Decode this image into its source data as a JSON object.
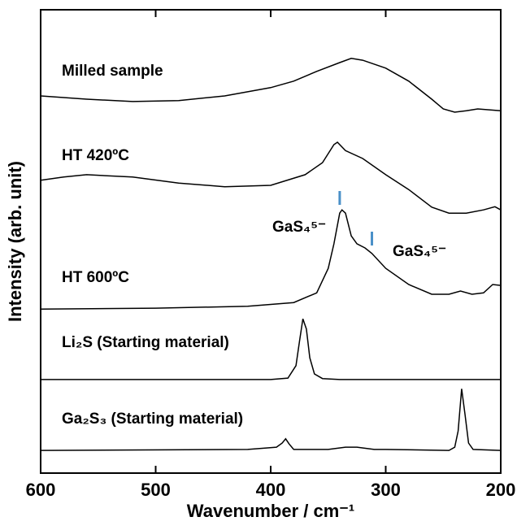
{
  "chart_data": {
    "type": "line",
    "xlabel": "Wavenumber / cm⁻¹",
    "ylabel": "Intensity (arb. unit)",
    "xlim": [
      600,
      200
    ],
    "xticks": [
      600,
      500,
      400,
      300,
      200
    ],
    "ylim": [
      0,
      100
    ],
    "series": [
      {
        "name": "Milled sample",
        "color": "#000000",
        "x": [
          600,
          560,
          520,
          480,
          440,
          400,
          380,
          360,
          340,
          330,
          320,
          300,
          280,
          260,
          250,
          240,
          230,
          220,
          200
        ],
        "values": [
          81.4,
          80.7,
          80.2,
          80.4,
          81.4,
          83.2,
          84.6,
          86.7,
          88.6,
          89.5,
          89.1,
          87.4,
          84.6,
          80.7,
          78.6,
          77.9,
          78.2,
          78.6,
          78.2
        ]
      },
      {
        "name": "HT 420ºC",
        "color": "#000000",
        "x": [
          600,
          580,
          560,
          520,
          480,
          440,
          400,
          370,
          355,
          345,
          342,
          335,
          320,
          300,
          280,
          260,
          245,
          230,
          215,
          205,
          200
        ],
        "values": [
          63.2,
          63.9,
          64.4,
          63.9,
          62.6,
          61.8,
          62.1,
          64.4,
          67.0,
          70.9,
          71.4,
          69.6,
          67.9,
          64.4,
          61.2,
          57.4,
          56.1,
          56.1,
          56.8,
          57.5,
          56.8
        ]
      },
      {
        "name": "HT 600ºC",
        "color": "#000000",
        "x": [
          600,
          500,
          420,
          380,
          360,
          350,
          345,
          340,
          338,
          335,
          330,
          325,
          318,
          312,
          300,
          280,
          260,
          245,
          235,
          225,
          215,
          207,
          200
        ],
        "values": [
          35.4,
          35.6,
          36.0,
          36.8,
          38.9,
          44.2,
          49.5,
          56.1,
          56.8,
          56.1,
          51.2,
          49.5,
          48.6,
          47.4,
          44.2,
          40.7,
          38.6,
          38.6,
          39.3,
          38.6,
          38.9,
          40.7,
          40.5
        ]
      },
      {
        "name": "Li₂S (Starting material)",
        "color": "#000000",
        "x": [
          600,
          400,
          385,
          378,
          375,
          372,
          369,
          366,
          362,
          355,
          340,
          200
        ],
        "values": [
          20.2,
          20.2,
          20.5,
          23.2,
          28.4,
          33.3,
          31.1,
          24.9,
          21.4,
          20.4,
          20.2,
          20.2
        ]
      },
      {
        "name": "Ga₂S₃ (Starting material)",
        "color": "#000000",
        "x": [
          600,
          420,
          405,
          395,
          390,
          387,
          384,
          380,
          370,
          350,
          335,
          325,
          310,
          300,
          245,
          240,
          237,
          234,
          231,
          228,
          224,
          200
        ],
        "values": [
          4.9,
          5.1,
          5.4,
          5.6,
          6.5,
          7.4,
          6.3,
          5.1,
          5.1,
          5.1,
          5.6,
          5.6,
          5.1,
          5.1,
          4.9,
          5.6,
          9.1,
          18.2,
          12.6,
          6.5,
          5.1,
          4.9
        ]
      }
    ],
    "annotations": [
      "GaS₄⁵⁻",
      "GaS₄⁵⁻"
    ],
    "peak_markers": {
      "color": "#4a90c8",
      "x": [
        340,
        312
      ]
    }
  }
}
